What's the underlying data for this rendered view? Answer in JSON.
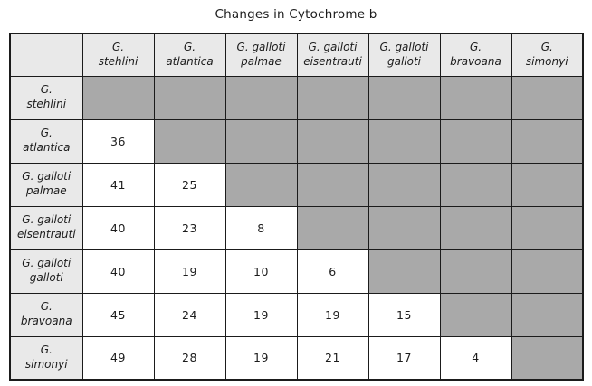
{
  "title": "Changes in Cytochrome b",
  "colors": {
    "shaded_cell": "#a9a9a9",
    "header_background": "#e9e9e9",
    "grid_border": "#1b1b1b",
    "value_cell_background": "#ffffff"
  },
  "chart_data": {
    "type": "table",
    "title": "Changes in Cytochrome b",
    "description": "Pairwise distance matrix of cytochrome b changes between Gallotia species; diagonal and upper-triangle cells are shaded gray with no values.",
    "row_labels": [
      "G. stehlini",
      "G. atlantica",
      "G. galloti palmae",
      "G. galloti eisentrauti",
      "G. galloti galloti",
      "G. bravoana",
      "G. simonyi"
    ],
    "col_labels": [
      "G. stehlini",
      "G. atlantica",
      "G. galloti palmae",
      "G. galloti eisentrauti",
      "G. galloti galloti",
      "G. bravoana",
      "G. simonyi"
    ],
    "matrix": [
      [
        null,
        null,
        null,
        null,
        null,
        null,
        null
      ],
      [
        36,
        null,
        null,
        null,
        null,
        null,
        null
      ],
      [
        41,
        25,
        null,
        null,
        null,
        null,
        null
      ],
      [
        40,
        23,
        8,
        null,
        null,
        null,
        null
      ],
      [
        40,
        19,
        10,
        6,
        null,
        null,
        null
      ],
      [
        45,
        24,
        19,
        19,
        15,
        null,
        null
      ],
      [
        49,
        28,
        19,
        21,
        17,
        4,
        null
      ]
    ]
  },
  "display": {
    "corner": "",
    "col_headers": [
      [
        "G.",
        "stehlini"
      ],
      [
        "G.",
        "atlantica"
      ],
      [
        "G. galloti",
        "palmae"
      ],
      [
        "G. galloti",
        "eisentrauti"
      ],
      [
        "G. galloti",
        "galloti"
      ],
      [
        "G.",
        "bravoana"
      ],
      [
        "G.",
        "simonyi"
      ]
    ],
    "row_headers": [
      [
        "G.",
        "stehlini"
      ],
      [
        "G.",
        "atlantica"
      ],
      [
        "G. galloti",
        "palmae"
      ],
      [
        "G. galloti",
        "eisentrauti"
      ],
      [
        "G. galloti",
        "galloti"
      ],
      [
        "G.",
        "bravoana"
      ],
      [
        "G.",
        "simonyi"
      ]
    ]
  }
}
